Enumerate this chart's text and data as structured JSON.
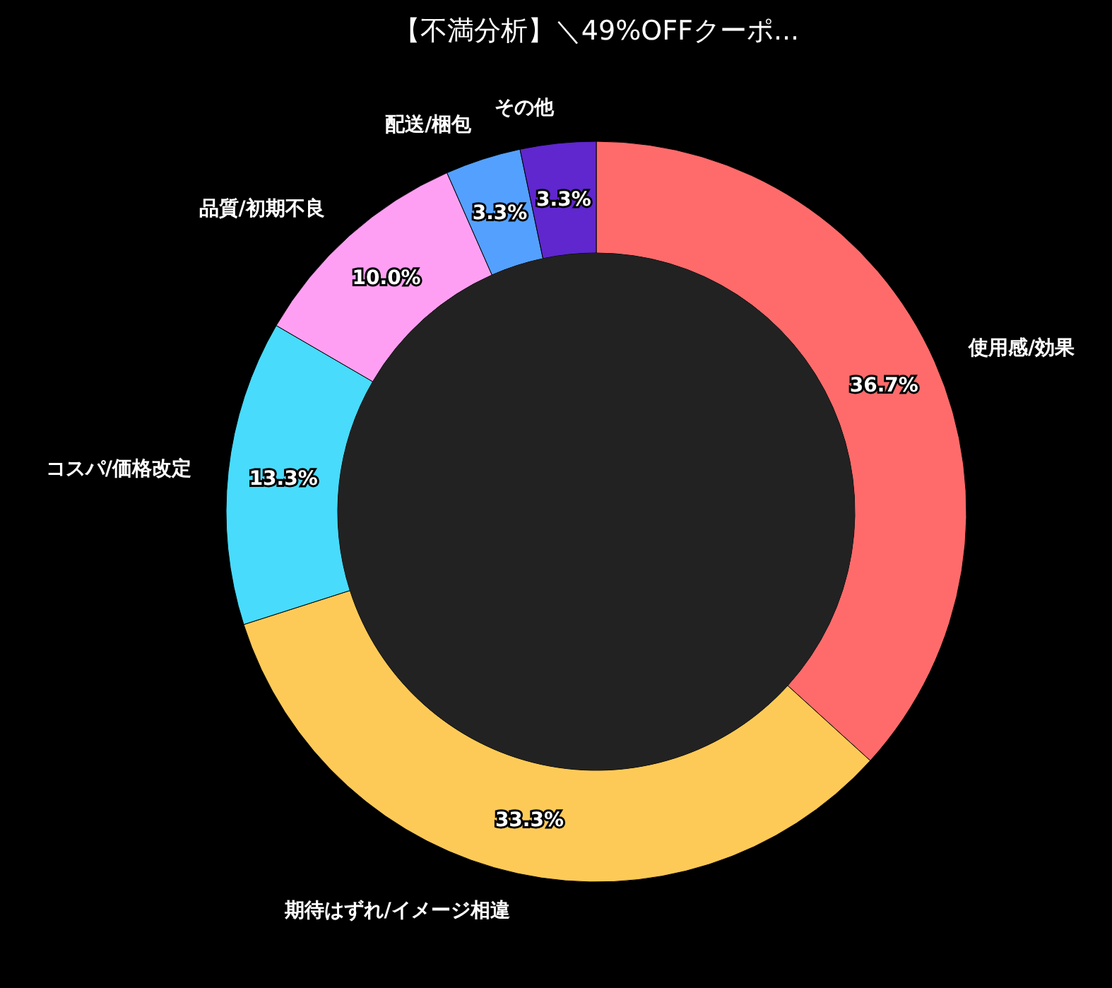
{
  "chart_data": {
    "type": "donut",
    "title": "【不満分析】＼49%OFFクーポ...",
    "categories": [
      "使用感/効果",
      "期待はずれ/イメージ相違",
      "コスパ/価格改定",
      "品質/初期不良",
      "配送/梱包",
      "その他"
    ],
    "values": [
      36.7,
      33.3,
      13.3,
      10.0,
      3.3,
      3.3
    ],
    "colors": [
      "#ff6b6b",
      "#feca57",
      "#48dbfb",
      "#ff9ff3",
      "#54a0ff",
      "#5f27cd"
    ],
    "value_labels": [
      "36.7%",
      "33.3%",
      "13.3%",
      "10.0%",
      "3.3%",
      "3.3%"
    ]
  }
}
